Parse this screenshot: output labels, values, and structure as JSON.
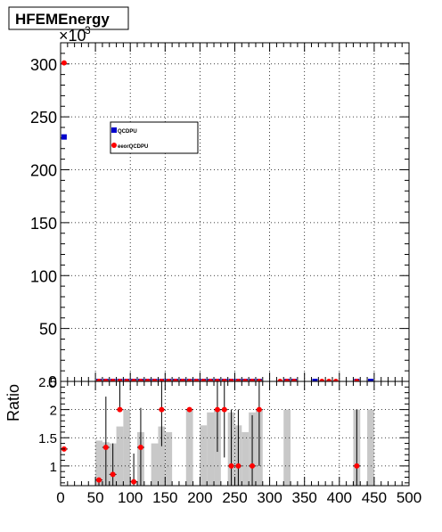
{
  "title_box": {
    "text": "HFEMEnergy"
  },
  "chart_data": [
    {
      "type": "scatter",
      "title": "HFEMEnergy",
      "xlim": [
        0,
        500
      ],
      "ylim": [
        0,
        320
      ],
      "y_multiplier_label": "×10",
      "y_multiplier_exponent": "3",
      "y_ticks": [
        0,
        50,
        100,
        150,
        200,
        250,
        300
      ],
      "x_ticks": [
        0,
        50,
        100,
        150,
        200,
        250,
        300,
        350,
        400,
        450,
        500
      ],
      "grid": true,
      "legend": {
        "placement": "top-left"
      },
      "series": [
        {
          "name": "QCDPU",
          "color": "#0000cc",
          "marker": "square",
          "points": [
            [
              5,
              231
            ],
            [
              55,
              0
            ],
            [
              65,
              0
            ],
            [
              75,
              0
            ],
            [
              85,
              0
            ],
            [
              95,
              0
            ],
            [
              105,
              0
            ],
            [
              115,
              0
            ],
            [
              125,
              0
            ],
            [
              135,
              0
            ],
            [
              145,
              0
            ],
            [
              155,
              0
            ],
            [
              165,
              0
            ],
            [
              175,
              0
            ],
            [
              185,
              0
            ],
            [
              195,
              0
            ],
            [
              205,
              0
            ],
            [
              215,
              0
            ],
            [
              225,
              0
            ],
            [
              235,
              0
            ],
            [
              245,
              0
            ],
            [
              255,
              0
            ],
            [
              265,
              0
            ],
            [
              275,
              0
            ],
            [
              285,
              0
            ],
            [
              325,
              0
            ],
            [
              335,
              0
            ],
            [
              365,
              0
            ],
            [
              425,
              0
            ],
            [
              445,
              0
            ]
          ]
        },
        {
          "name": "eeorQCDPU",
          "color": "#ff0000",
          "marker": "circle",
          "points": [
            [
              5,
              301
            ],
            [
              55,
              0
            ],
            [
              65,
              0
            ],
            [
              75,
              0
            ],
            [
              85,
              0
            ],
            [
              95,
              0
            ],
            [
              105,
              0
            ],
            [
              115,
              0
            ],
            [
              125,
              0
            ],
            [
              135,
              0
            ],
            [
              145,
              0
            ],
            [
              155,
              0
            ],
            [
              165,
              0
            ],
            [
              175,
              0
            ],
            [
              185,
              0
            ],
            [
              195,
              0
            ],
            [
              205,
              0
            ],
            [
              215,
              0
            ],
            [
              225,
              0
            ],
            [
              235,
              0
            ],
            [
              245,
              0
            ],
            [
              255,
              0
            ],
            [
              265,
              0
            ],
            [
              275,
              0
            ],
            [
              285,
              0
            ],
            [
              315,
              0
            ],
            [
              325,
              0
            ],
            [
              335,
              0
            ],
            [
              375,
              0
            ],
            [
              385,
              0
            ],
            [
              395,
              0
            ],
            [
              425,
              0
            ]
          ]
        }
      ]
    },
    {
      "type": "scatter",
      "ylabel": "Ratio",
      "xlim": [
        0,
        500
      ],
      "ylim": [
        0.65,
        2.5
      ],
      "y_ticks": [
        1,
        1.5,
        2
      ],
      "y_top_label": "2.5",
      "grid": true,
      "band": {
        "color": "#c8c8c8",
        "bins": [
          [
            50,
            60,
            1.45
          ],
          [
            60,
            70,
            1.42
          ],
          [
            70,
            80,
            1.4
          ],
          [
            80,
            90,
            1.7
          ],
          [
            90,
            100,
            2.0
          ],
          [
            110,
            120,
            1.6
          ],
          [
            130,
            140,
            1.4
          ],
          [
            140,
            150,
            1.7
          ],
          [
            150,
            160,
            1.6
          ],
          [
            180,
            190,
            2.0
          ],
          [
            200,
            210,
            1.72
          ],
          [
            210,
            220,
            1.95
          ],
          [
            220,
            230,
            2.0
          ],
          [
            240,
            250,
            1.95
          ],
          [
            250,
            260,
            1.72
          ],
          [
            260,
            270,
            1.6
          ],
          [
            270,
            280,
            1.95
          ],
          [
            280,
            290,
            2.0
          ],
          [
            320,
            330,
            2.0
          ],
          [
            420,
            430,
            2.0
          ],
          [
            440,
            450,
            2.0
          ]
        ]
      },
      "points": [
        [
          5,
          1.3,
          0,
          0
        ],
        [
          55,
          0.75,
          0.45,
          0
        ],
        [
          65,
          1.33,
          0.9,
          0.9
        ],
        [
          75,
          0.85,
          0.55,
          0.55
        ],
        [
          85,
          2.0,
          0,
          0.5
        ],
        [
          105,
          0.72,
          0.5,
          0.5
        ],
        [
          115,
          1.33,
          0.7,
          0.7
        ],
        [
          145,
          2.0,
          0.65,
          0.55
        ],
        [
          185,
          2.0,
          0,
          0
        ],
        [
          225,
          2.0,
          0.75,
          0.5
        ],
        [
          235,
          2.0,
          0.85,
          0.5
        ],
        [
          245,
          1.0,
          0.65,
          1.0
        ],
        [
          255,
          1.0,
          0.55,
          1.0
        ],
        [
          275,
          1.0,
          0.7,
          0.9
        ],
        [
          285,
          2.0,
          1.0,
          0.5
        ],
        [
          425,
          1.0,
          0.7,
          1.0
        ]
      ]
    }
  ]
}
